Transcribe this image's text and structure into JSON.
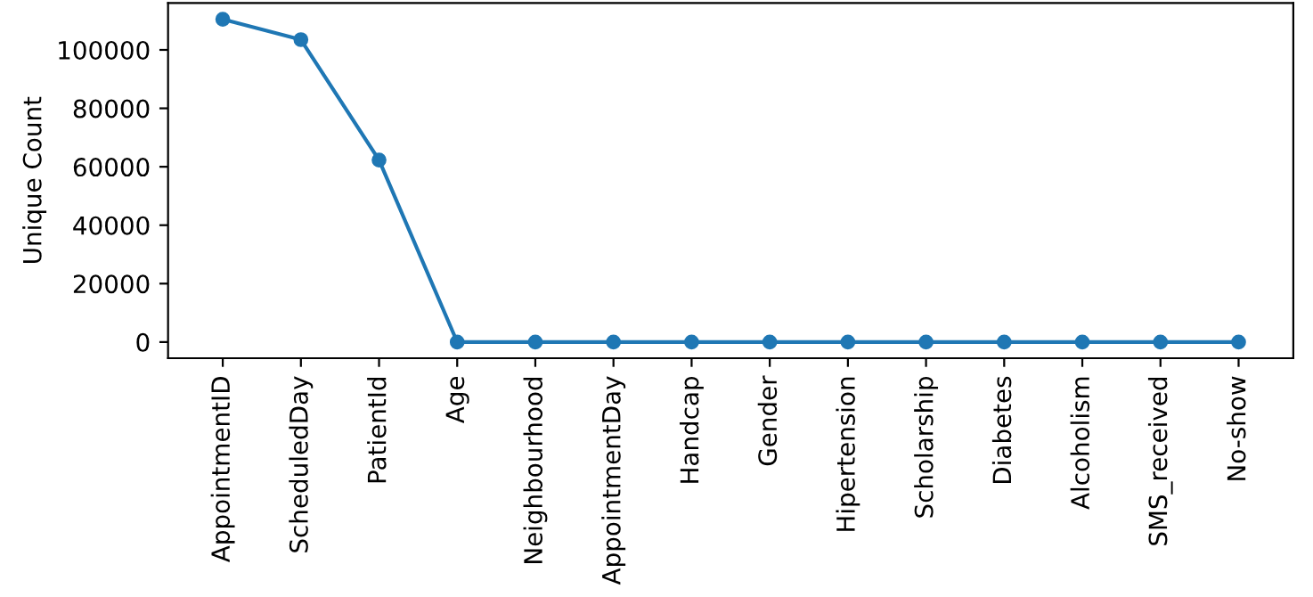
{
  "chart_data": {
    "type": "line",
    "ylabel": "Unique Count",
    "categories": [
      "AppointmentID",
      "ScheduledDay",
      "PatientId",
      "Age",
      "Neighbourhood",
      "AppointmentDay",
      "Handcap",
      "Gender",
      "Hipertension",
      "Scholarship",
      "Diabetes",
      "Alcoholism",
      "SMS_received",
      "No-show"
    ],
    "series": [
      {
        "color": "#1f77b4",
        "values": [
          110500,
          103500,
          62300,
          0,
          0,
          0,
          0,
          0,
          0,
          0,
          0,
          0,
          0,
          0
        ]
      }
    ],
    "ylim": [
      -5526,
      116053
    ],
    "yticks": [
      0,
      20000,
      40000,
      60000,
      80000,
      100000
    ],
    "marker": "circle",
    "line_style": "solid",
    "grid": false,
    "legend": false
  }
}
